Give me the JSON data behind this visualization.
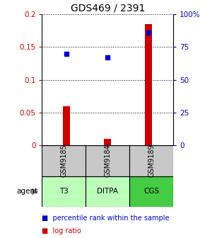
{
  "title": "GDS469 / 2391",
  "samples": [
    "GSM9185",
    "GSM9184",
    "GSM9189"
  ],
  "agents": [
    "T3",
    "DITPA",
    "CGS"
  ],
  "log_ratios": [
    0.06,
    0.01,
    0.185
  ],
  "percentile_ranks": [
    70.0,
    67.0,
    86.0
  ],
  "ylim_left": [
    0,
    0.2
  ],
  "ylim_right": [
    0,
    100
  ],
  "yticks_left": [
    0,
    0.05,
    0.1,
    0.15,
    0.2
  ],
  "yticks_right": [
    0,
    25,
    50,
    75,
    100
  ],
  "ytick_labels_left": [
    "0",
    "0.05",
    "0.1",
    "0.15",
    "0.2"
  ],
  "ytick_labels_right": [
    "0",
    "25",
    "50",
    "75",
    "100%"
  ],
  "bar_color": "#cc0000",
  "dot_color": "#0000cc",
  "sample_box_color": "#c8c8c8",
  "agent_colors": [
    "#bbffbb",
    "#bbffbb",
    "#44cc44"
  ],
  "title_fontsize": 10,
  "tick_fontsize": 7.5,
  "legend_fontsize": 7,
  "table_fontsize": 7,
  "bar_width": 0.18
}
